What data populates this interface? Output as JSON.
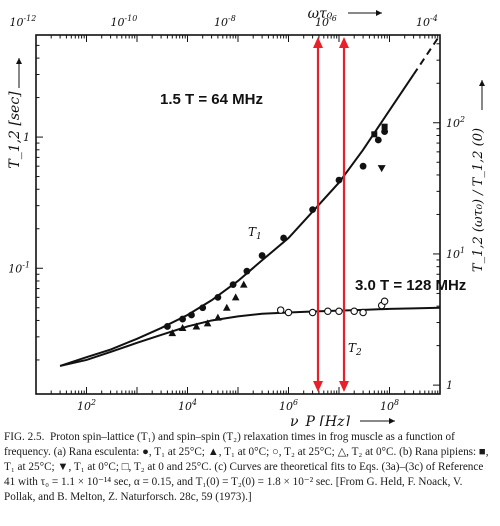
{
  "chart_data": {
    "type": "scatter",
    "xlabel": "ν_P [Hz]",
    "x_scale": "log",
    "xlim": [
      10.0,
      1000000000.0
    ],
    "x_ticks": [
      {
        "value": 100.0,
        "label": "10^2"
      },
      {
        "value": 10000.0,
        "label": "10^4"
      },
      {
        "value": 1000000.0,
        "label": "10^6"
      },
      {
        "value": 100000000.0,
        "label": "10^8"
      }
    ],
    "top_axis": {
      "label": "ωτ₀",
      "ticks": [
        {
          "value": 1e-12,
          "label": "10^-12"
        },
        {
          "value": 1e-10,
          "label": "10^-10"
        },
        {
          "value": 1e-08,
          "label": "10^-8"
        },
        {
          "value": 1e-06,
          "label": "10^-6"
        },
        {
          "value": 0.0001,
          "label": "10^-4"
        }
      ]
    },
    "ylabel": "T_1,2 [sec]",
    "y_scale": "log",
    "ylim": [
      0.011,
      6
    ],
    "y_ticks": [
      {
        "value": 0.1,
        "label": "10^-1"
      },
      {
        "value": 1,
        "label": "1"
      }
    ],
    "right_axis": {
      "label": "T_1,2 (ωτ₀) / T_1,2 (0)",
      "ticks": [
        {
          "value": 1,
          "label": "1"
        },
        {
          "value": 10,
          "label": "10^1"
        },
        {
          "value": 100,
          "label": "10^2"
        }
      ]
    },
    "curve_labels": [
      {
        "name": "T1",
        "text": "T_1"
      },
      {
        "name": "T2",
        "text": "T_2"
      }
    ],
    "annotations": [
      {
        "text": "1.5 T = 64 MHz",
        "x": 64000000.0,
        "color": "#e8202a"
      },
      {
        "text": "3.0 T = 128 MHz",
        "x": 128000000.0,
        "color": "#e8202a"
      }
    ],
    "series": [
      {
        "name": "T1",
        "kind": "curve",
        "style": "solid-then-dashed",
        "x": [
          30,
          100,
          300,
          1000,
          3000,
          10000,
          30000,
          100000,
          300000,
          1000000,
          3000000,
          10000000,
          30000000,
          100000000,
          300000000,
          1000000000
        ],
        "y": [
          0.018,
          0.021,
          0.024,
          0.029,
          0.035,
          0.044,
          0.057,
          0.08,
          0.115,
          0.17,
          0.27,
          0.45,
          0.8,
          1.6,
          3.0,
          6.0
        ]
      },
      {
        "name": "T2",
        "kind": "curve",
        "style": "solid",
        "x": [
          30,
          100,
          300,
          1000,
          3000,
          10000,
          30000,
          100000,
          300000,
          1000000,
          3000000,
          10000000,
          30000000,
          100000000,
          300000000,
          1000000000
        ],
        "y": [
          0.018,
          0.02,
          0.023,
          0.027,
          0.031,
          0.036,
          0.04,
          0.043,
          0.045,
          0.046,
          0.0468,
          0.0475,
          0.0482,
          0.049,
          0.0495,
          0.05
        ]
      },
      {
        "name": "T1 at 25°C (filled circles)",
        "kind": "points",
        "marker": "filled-circle",
        "x": [
          4000,
          8000,
          12000,
          20000,
          40000,
          80000,
          150000,
          300000,
          800000,
          3000000,
          10000000,
          30000000,
          60000000,
          80000000
        ],
        "y": [
          0.036,
          0.041,
          0.044,
          0.05,
          0.06,
          0.075,
          0.095,
          0.125,
          0.17,
          0.28,
          0.47,
          0.6,
          0.95,
          1.1
        ]
      },
      {
        "name": "T1 at 0°C (filled triangles)",
        "kind": "points",
        "marker": "filled-triangle",
        "x": [
          5000,
          8000,
          15000,
          25000,
          40000,
          60000,
          90000,
          130000
        ],
        "y": [
          0.032,
          0.035,
          0.036,
          0.038,
          0.042,
          0.05,
          0.06,
          0.075
        ]
      },
      {
        "name": "T1 at 0°C, Rana pipiens (inverted triangle)",
        "kind": "points",
        "marker": "inverted-triangle",
        "x": [
          70000000
        ],
        "y": [
          0.58
        ]
      },
      {
        "name": "T1 at 25°C, Rana pipiens (squares)",
        "kind": "points",
        "marker": "filled-square",
        "x": [
          50000000,
          80000000
        ],
        "y": [
          1.05,
          1.2
        ]
      },
      {
        "name": "T2 at 25°C (open circles)",
        "kind": "points",
        "marker": "open-circle",
        "x": [
          700000,
          1000000,
          3000000,
          6000000,
          10000000,
          20000000,
          30000000,
          70000000,
          80000000
        ],
        "y": [
          0.048,
          0.046,
          0.046,
          0.047,
          0.047,
          0.047,
          0.046,
          0.052,
          0.056
        ]
      }
    ]
  },
  "caption": {
    "fig_label": "FIG. 2.5.",
    "text": "Proton spin–lattice (T₁) and spin–spin (T₂) relaxation times in frog muscle as a function of frequency. (a) Rana esculenta: ●, T₁ at 25°C; ▲, T₁ at 0°C; ○, T₂ at 25°C; △, T₂ at 0°C. (b) Rana pipiens: ■, T₁ at 25°C; ▼, T₁ at 0°C; □, T₂ at 0 and 25°C. (c) Curves are theoretical fits to Eqs. (3a)–(3c) of Reference 41 with τ₀ = 1.1 × 10⁻¹⁴ sec, α = 0.15, and T₁(0) = T₂(0) = 1.8 × 10⁻² sec. [From G. Held, F. Noack, V. Pollak, and B. Melton, Z. Naturforsch. 28c, 59 (1973).]"
  },
  "colors": {
    "annotation": "#e8202a",
    "ink": "#111111"
  }
}
